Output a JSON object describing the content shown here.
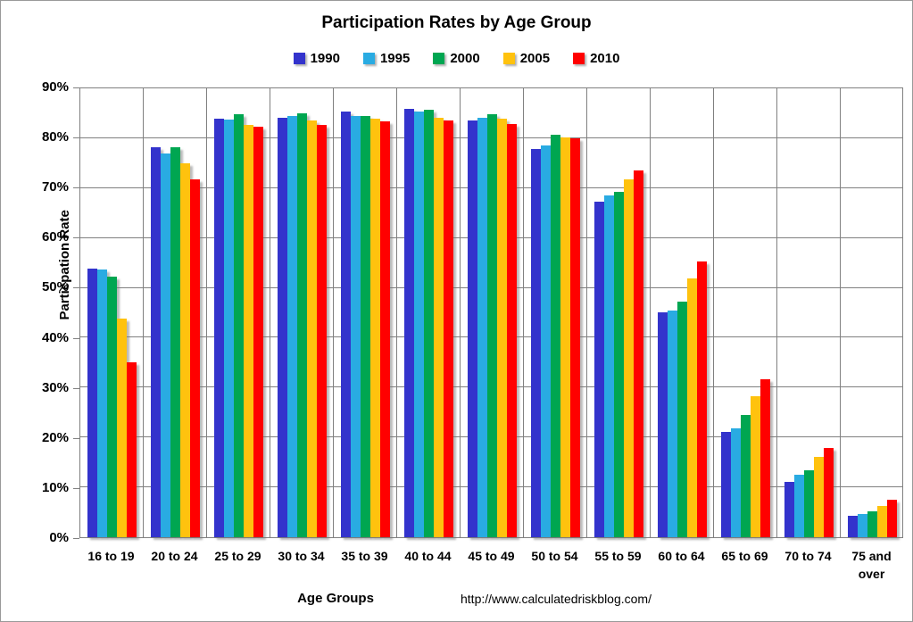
{
  "page": {
    "title": "Participation Rates by Age Group",
    "y_axis_title": "Particpation Rate",
    "x_axis_title": "Age Groups",
    "source_url": "http://www.calculatedriskblog.com/"
  },
  "colors": {
    "background": "#ffffff",
    "gridline": "#808080",
    "plot_border": "#808080",
    "text": "#000000"
  },
  "chart_data": {
    "type": "bar",
    "title": "Participation Rates by Age Group",
    "xlabel": "Age Groups",
    "ylabel": "Particpation Rate",
    "ylim": [
      0,
      90
    ],
    "y_tick_step": 10,
    "y_tick_labels": [
      "0%",
      "10%",
      "20%",
      "30%",
      "40%",
      "50%",
      "60%",
      "70%",
      "80%",
      "90%"
    ],
    "grid": true,
    "legend_position": "top",
    "annotation": "http://www.calculatedriskblog.com/",
    "categories": [
      "16 to 19",
      "20 to 24",
      "25 to 29",
      "30 to 34",
      "35 to 39",
      "40 to 44",
      "45 to 49",
      "50 to 54",
      "55 to 59",
      "60 to 64",
      "65 to 69",
      "70 to 74",
      "75 and over"
    ],
    "series": [
      {
        "name": "1990",
        "color": "#3333CC",
        "values": [
          53.7,
          77.8,
          83.5,
          83.7,
          85.0,
          85.5,
          83.2,
          77.5,
          67.0,
          44.9,
          21.0,
          11.1,
          4.3
        ]
      },
      {
        "name": "1995",
        "color": "#29ABE2",
        "values": [
          53.5,
          76.6,
          83.4,
          84.1,
          84.1,
          85.0,
          83.8,
          78.2,
          68.2,
          45.2,
          21.8,
          12.4,
          4.6
        ]
      },
      {
        "name": "2000",
        "color": "#00A651",
        "values": [
          52.0,
          77.8,
          84.5,
          84.7,
          84.2,
          85.4,
          84.4,
          80.4,
          69.0,
          47.1,
          24.5,
          13.4,
          5.2
        ]
      },
      {
        "name": "2005",
        "color": "#FFC20E",
        "values": [
          43.7,
          74.6,
          82.4,
          83.3,
          83.6,
          83.7,
          83.6,
          79.8,
          71.5,
          51.7,
          28.2,
          16.1,
          6.2
        ]
      },
      {
        "name": "2010",
        "color": "#FF0000",
        "values": [
          34.9,
          71.4,
          81.9,
          82.4,
          83.0,
          83.3,
          82.5,
          79.6,
          73.2,
          55.1,
          31.6,
          17.9,
          7.4
        ]
      }
    ]
  }
}
